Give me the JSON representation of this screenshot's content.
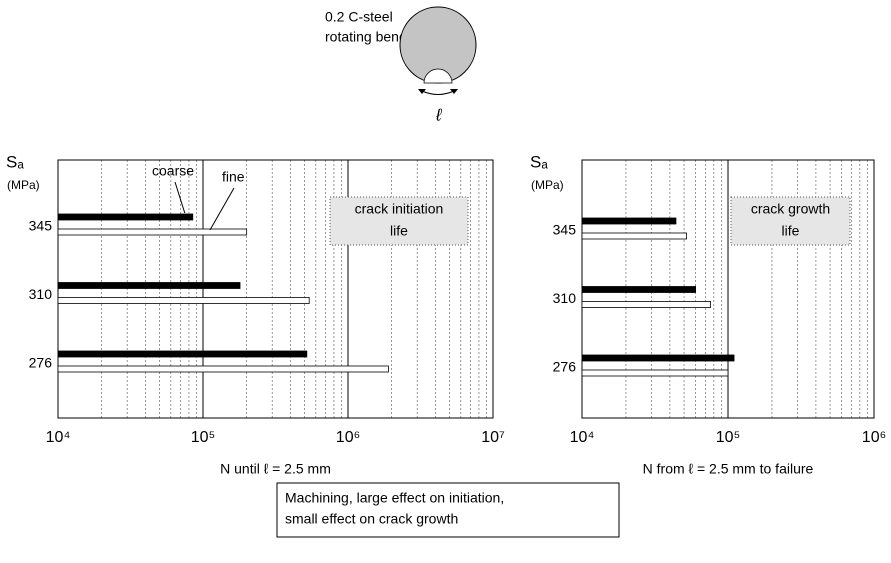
{
  "figure": {
    "title": [
      "0.2 C-steel",
      "rotating bending"
    ],
    "symbol": "ℓ",
    "caption": [
      "Machining, large effect on initiation,",
      "small effect on crack growth"
    ]
  },
  "chart_data": [
    {
      "type": "bar",
      "orientation": "horizontal",
      "log_x": true,
      "y_label": "Sₐ",
      "y_unit": "(MPa)",
      "x_label": "N until ℓ = 2.5 mm",
      "annotation": [
        "crack initiation",
        "life"
      ],
      "categories": [
        "345",
        "310",
        "276"
      ],
      "series": [
        {
          "name": "coarse",
          "color": "#000000",
          "values": [
            85000,
            180000,
            520000
          ]
        },
        {
          "name": "fine",
          "color": "#ffffff",
          "values": [
            200000,
            540000,
            1900000
          ]
        }
      ],
      "xlim": [
        10000,
        10000000
      ],
      "xticks": [
        {
          "value": 10000,
          "label": "10⁴"
        },
        {
          "value": 100000,
          "label": "10⁵"
        },
        {
          "value": 1000000,
          "label": "10⁶"
        },
        {
          "value": 10000000,
          "label": "10⁷"
        }
      ],
      "grid": true
    },
    {
      "type": "bar",
      "orientation": "horizontal",
      "log_x": true,
      "y_label": "Sₐ",
      "y_unit": "(MPa)",
      "x_label": "N from ℓ = 2.5 mm to failure",
      "annotation": [
        "crack growth",
        "life"
      ],
      "categories": [
        "345",
        "310",
        "276"
      ],
      "series": [
        {
          "name": "coarse",
          "color": "#000000",
          "values": [
            44000,
            60000,
            110000
          ]
        },
        {
          "name": "fine",
          "color": "#ffffff",
          "values": [
            52000,
            76000,
            100000
          ]
        }
      ],
      "xlim": [
        10000,
        1000000
      ],
      "xticks": [
        {
          "value": 10000,
          "label": "10⁴"
        },
        {
          "value": 100000,
          "label": "10⁵"
        },
        {
          "value": 1000000,
          "label": "10⁶"
        }
      ],
      "grid": true
    }
  ]
}
